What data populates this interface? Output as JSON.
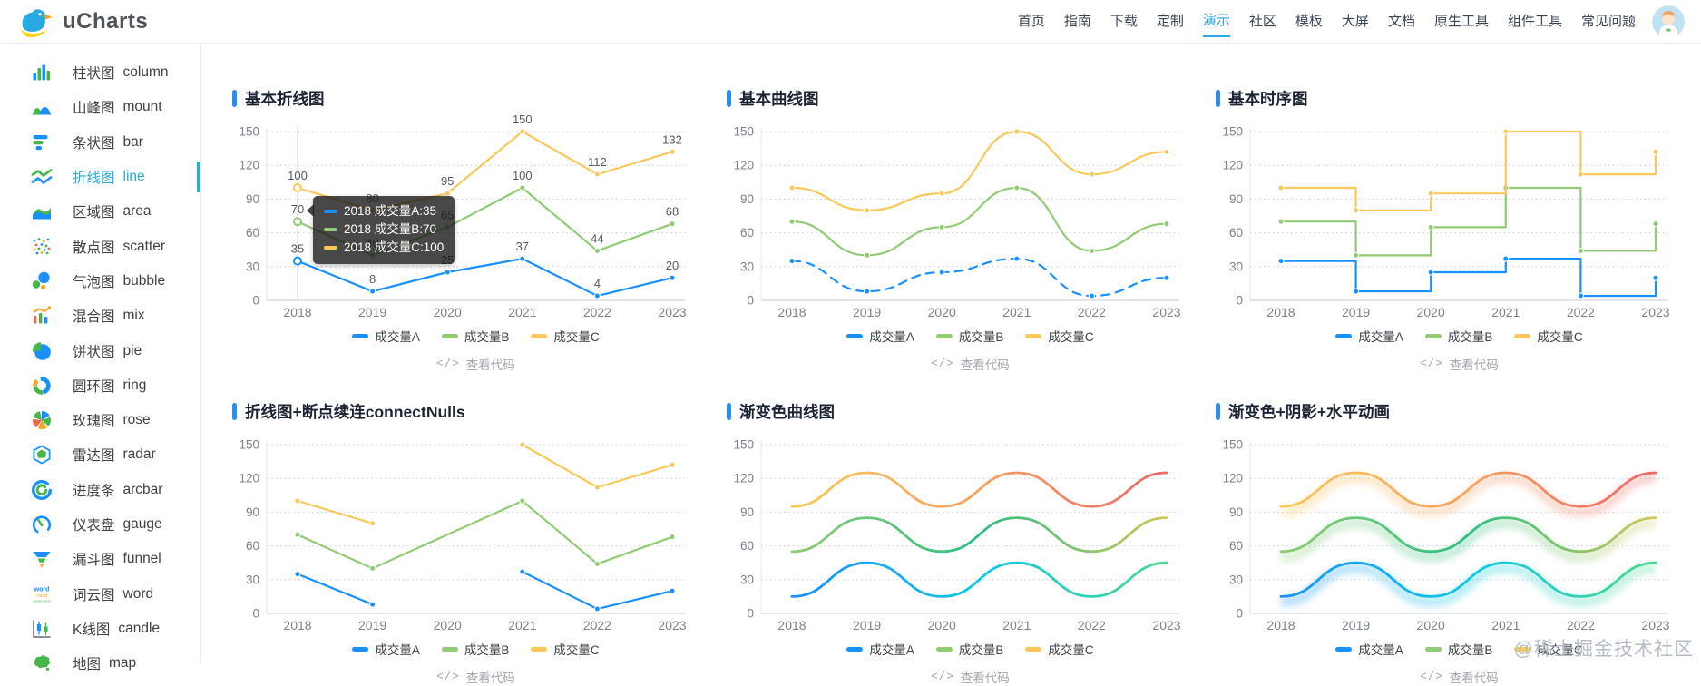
{
  "brand": {
    "name": "uCharts"
  },
  "nav": {
    "items": [
      "首页",
      "指南",
      "下载",
      "定制",
      "演示",
      "社区",
      "模板",
      "大屏",
      "文档",
      "原生工具",
      "组件工具",
      "常见问题"
    ],
    "active": "演示"
  },
  "sidebar": {
    "active": "line",
    "items": [
      {
        "zh": "柱状图",
        "en": "column"
      },
      {
        "zh": "山峰图",
        "en": "mount"
      },
      {
        "zh": "条状图",
        "en": "bar"
      },
      {
        "zh": "折线图",
        "en": "line"
      },
      {
        "zh": "区域图",
        "en": "area"
      },
      {
        "zh": "散点图",
        "en": "scatter"
      },
      {
        "zh": "气泡图",
        "en": "bubble"
      },
      {
        "zh": "混合图",
        "en": "mix"
      },
      {
        "zh": "饼状图",
        "en": "pie"
      },
      {
        "zh": "圆环图",
        "en": "ring"
      },
      {
        "zh": "玫瑰图",
        "en": "rose"
      },
      {
        "zh": "雷达图",
        "en": "radar"
      },
      {
        "zh": "进度条",
        "en": "arcbar"
      },
      {
        "zh": "仪表盘",
        "en": "gauge"
      },
      {
        "zh": "漏斗图",
        "en": "funnel"
      },
      {
        "zh": "词云图",
        "en": "word"
      },
      {
        "zh": "K线图",
        "en": "candle"
      },
      {
        "zh": "地图",
        "en": "map"
      }
    ]
  },
  "view_code": {
    "icon": "</>",
    "label": "查看代码"
  },
  "tooltip": {
    "lines": [
      {
        "color": "#1890FF",
        "text": "2018 成交量A:35"
      },
      {
        "color": "#91CB74",
        "text": "2018 成交量B:70"
      },
      {
        "color": "#FAC858",
        "text": "2018 成交量C:100"
      }
    ]
  },
  "watermark": "@稀土掘金技术社区",
  "colors": {
    "accent": "#2aa9e2",
    "title_bar": "#2d8cf0",
    "series_a": "#1890FF",
    "series_b": "#91CB74",
    "series_c": "#FAC858"
  },
  "chart_data": [
    {
      "type": "line",
      "title": "基本折线图",
      "categories": [
        "2018",
        "2019",
        "2020",
        "2021",
        "2022",
        "2023"
      ],
      "ylim": [
        0,
        150
      ],
      "yticks": [
        0,
        30,
        60,
        90,
        120,
        150
      ],
      "show_value_labels": true,
      "active_category_index": 0,
      "series": [
        {
          "name": "成交量A",
          "color": "#1890FF",
          "values": [
            35,
            8,
            25,
            37,
            4,
            20
          ]
        },
        {
          "name": "成交量B",
          "color": "#91CB74",
          "values": [
            70,
            40,
            65,
            100,
            44,
            68
          ]
        },
        {
          "name": "成交量C",
          "color": "#FAC858",
          "values": [
            100,
            80,
            95,
            150,
            112,
            132
          ]
        }
      ]
    },
    {
      "type": "curve",
      "title": "基本曲线图",
      "categories": [
        "2018",
        "2019",
        "2020",
        "2021",
        "2022",
        "2023"
      ],
      "ylim": [
        0,
        150
      ],
      "yticks": [
        0,
        30,
        60,
        90,
        120,
        150
      ],
      "series": [
        {
          "name": "成交量A",
          "color": "#1890FF",
          "dashed": true,
          "values": [
            35,
            8,
            25,
            37,
            4,
            20
          ]
        },
        {
          "name": "成交量B",
          "color": "#91CB74",
          "values": [
            70,
            40,
            65,
            100,
            44,
            68
          ]
        },
        {
          "name": "成交量C",
          "color": "#FAC858",
          "values": [
            100,
            80,
            95,
            150,
            112,
            132
          ]
        }
      ]
    },
    {
      "type": "step",
      "title": "基本时序图",
      "categories": [
        "2018",
        "2019",
        "2020",
        "2021",
        "2022",
        "2023"
      ],
      "ylim": [
        0,
        150
      ],
      "yticks": [
        0,
        30,
        60,
        90,
        120,
        150
      ],
      "series": [
        {
          "name": "成交量A",
          "color": "#1890FF",
          "values": [
            35,
            8,
            25,
            37,
            4,
            20
          ]
        },
        {
          "name": "成交量B",
          "color": "#91CB74",
          "values": [
            70,
            40,
            65,
            100,
            44,
            68
          ]
        },
        {
          "name": "成交量C",
          "color": "#FAC858",
          "values": [
            100,
            80,
            95,
            150,
            112,
            132
          ]
        }
      ]
    },
    {
      "type": "line",
      "title": "折线图+断点续连connectNulls",
      "categories": [
        "2018",
        "2019",
        "2020",
        "2021",
        "2022",
        "2023"
      ],
      "ylim": [
        0,
        150
      ],
      "yticks": [
        0,
        30,
        60,
        90,
        120,
        150
      ],
      "series": [
        {
          "name": "成交量A",
          "color": "#1890FF",
          "connect_nulls": false,
          "values": [
            35,
            8,
            null,
            37,
            4,
            20
          ]
        },
        {
          "name": "成交量B",
          "color": "#91CB74",
          "connect_nulls": true,
          "values": [
            70,
            40,
            null,
            100,
            44,
            68
          ]
        },
        {
          "name": "成交量C",
          "color": "#FAC858",
          "connect_nulls": false,
          "values": [
            100,
            80,
            null,
            150,
            112,
            132
          ]
        }
      ]
    },
    {
      "type": "curve",
      "title": "渐变色曲线图",
      "markers": false,
      "categories": [
        "2018",
        "2019",
        "2020",
        "2021",
        "2022",
        "2023"
      ],
      "ylim": [
        0,
        150
      ],
      "yticks": [
        0,
        30,
        60,
        90,
        120,
        150
      ],
      "series": [
        {
          "name": "成交量A",
          "color": "#1890FF",
          "gradient": [
            "#1890FF",
            "#0fc8e3",
            "#49d98f"
          ],
          "values": [
            15,
            45,
            15,
            45,
            15,
            45
          ]
        },
        {
          "name": "成交量B",
          "color": "#91CB74",
          "gradient": [
            "#91CB74",
            "#2fbf83",
            "#d0c85a"
          ],
          "values": [
            55,
            85,
            55,
            85,
            55,
            85
          ]
        },
        {
          "name": "成交量C",
          "color": "#FAC858",
          "gradient": [
            "#FAC858",
            "#f6a160",
            "#EE6666"
          ],
          "values": [
            95,
            125,
            95,
            125,
            95,
            125
          ]
        }
      ]
    },
    {
      "type": "curve",
      "title": "渐变色+阴影+水平动画",
      "markers": false,
      "shadow": true,
      "categories": [
        "2018",
        "2019",
        "2020",
        "2021",
        "2022",
        "2023"
      ],
      "ylim": [
        0,
        150
      ],
      "yticks": [
        0,
        30,
        60,
        90,
        120,
        150
      ],
      "series": [
        {
          "name": "成交量A",
          "color": "#1890FF",
          "gradient": [
            "#1890FF",
            "#0fc8e3",
            "#49d98f"
          ],
          "values": [
            15,
            45,
            15,
            45,
            15,
            45
          ]
        },
        {
          "name": "成交量B",
          "color": "#91CB74",
          "gradient": [
            "#91CB74",
            "#2fbf83",
            "#d0c85a"
          ],
          "values": [
            55,
            85,
            55,
            85,
            55,
            85
          ]
        },
        {
          "name": "成交量C",
          "color": "#FAC858",
          "gradient": [
            "#FAC858",
            "#f6a160",
            "#EE6666"
          ],
          "values": [
            95,
            125,
            95,
            125,
            95,
            125
          ]
        }
      ]
    }
  ]
}
